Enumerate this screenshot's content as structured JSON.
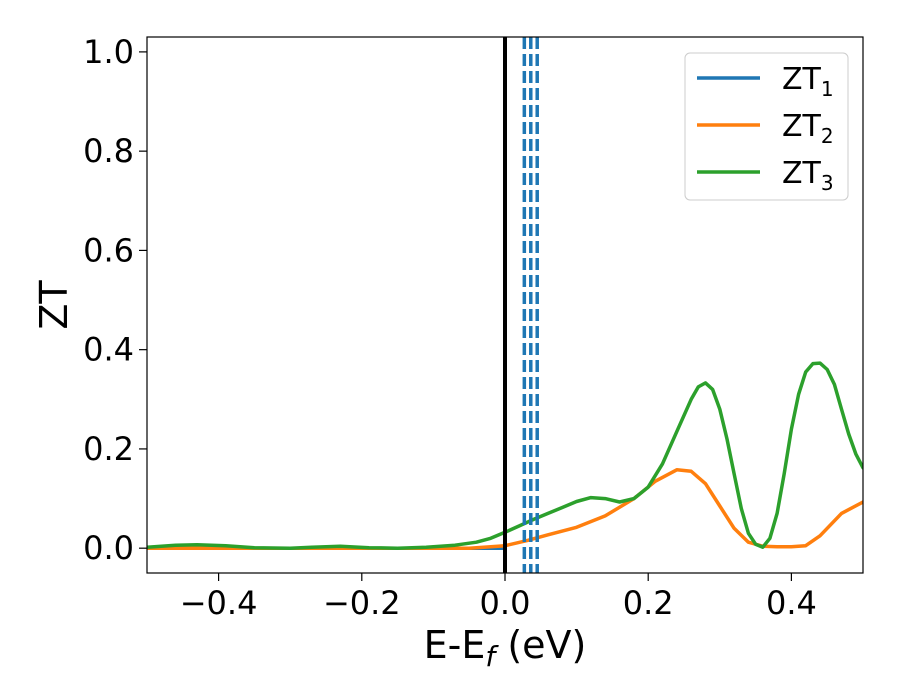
{
  "chart_data": {
    "type": "line",
    "title": "",
    "xlabel": "E-E",
    "xlabel_sub": "f",
    "xlabel_unit": " (eV)",
    "ylabel": "ZT",
    "xlim": [
      -0.5,
      0.5
    ],
    "ylim": [
      -0.05,
      1.03
    ],
    "xticks": [
      -0.4,
      -0.2,
      0.0,
      0.2,
      0.4
    ],
    "xtick_labels": [
      "−0.4",
      "−0.2",
      "0.0",
      "0.2",
      "0.4"
    ],
    "yticks": [
      0.0,
      0.2,
      0.4,
      0.6,
      0.8,
      1.0
    ],
    "ytick_labels": [
      "0.0",
      "0.2",
      "0.4",
      "0.6",
      "0.8",
      "1.0"
    ],
    "grid": false,
    "legend_position": "top-right",
    "series": [
      {
        "name": "ZT",
        "name_sub": "1",
        "color": "#1f77b4",
        "x": [
          -0.5,
          -0.3,
          -0.1,
          0.0
        ],
        "y": [
          0.0,
          0.0,
          0.0,
          0.0
        ]
      },
      {
        "name": "ZT",
        "name_sub": "2",
        "color": "#ff7f0e",
        "x": [
          -0.5,
          -0.45,
          -0.4,
          -0.35,
          -0.3,
          -0.25,
          -0.2,
          -0.15,
          -0.1,
          -0.05,
          0.0,
          0.03,
          0.06,
          0.1,
          0.14,
          0.18,
          0.21,
          0.24,
          0.26,
          0.28,
          0.3,
          0.32,
          0.34,
          0.36,
          0.38,
          0.4,
          0.42,
          0.44,
          0.47,
          0.5
        ],
        "y": [
          0.0,
          0.0,
          0.0,
          0.0,
          0.0,
          0.0,
          0.0,
          0.0,
          0.0,
          0.0,
          0.005,
          0.015,
          0.027,
          0.042,
          0.065,
          0.1,
          0.135,
          0.158,
          0.155,
          0.13,
          0.085,
          0.04,
          0.012,
          0.004,
          0.003,
          0.003,
          0.005,
          0.025,
          0.07,
          0.093
        ]
      },
      {
        "name": "ZT",
        "name_sub": "3",
        "color": "#2ca02c",
        "x": [
          -0.5,
          -0.46,
          -0.43,
          -0.39,
          -0.35,
          -0.3,
          -0.27,
          -0.23,
          -0.19,
          -0.15,
          -0.11,
          -0.07,
          -0.04,
          -0.02,
          0.0,
          0.02,
          0.04,
          0.06,
          0.08,
          0.1,
          0.12,
          0.14,
          0.16,
          0.18,
          0.2,
          0.22,
          0.24,
          0.26,
          0.27,
          0.28,
          0.29,
          0.3,
          0.31,
          0.32,
          0.33,
          0.34,
          0.35,
          0.36,
          0.37,
          0.38,
          0.39,
          0.4,
          0.41,
          0.42,
          0.43,
          0.44,
          0.45,
          0.46,
          0.47,
          0.48,
          0.49,
          0.5
        ],
        "y": [
          0.002,
          0.006,
          0.007,
          0.005,
          0.001,
          0.0,
          0.002,
          0.004,
          0.001,
          0.0,
          0.002,
          0.006,
          0.012,
          0.02,
          0.032,
          0.045,
          0.058,
          0.07,
          0.082,
          0.094,
          0.102,
          0.1,
          0.093,
          0.1,
          0.123,
          0.17,
          0.235,
          0.3,
          0.325,
          0.333,
          0.32,
          0.28,
          0.22,
          0.15,
          0.08,
          0.03,
          0.008,
          0.002,
          0.02,
          0.07,
          0.15,
          0.24,
          0.31,
          0.355,
          0.372,
          0.373,
          0.36,
          0.33,
          0.28,
          0.23,
          0.19,
          0.162
        ]
      }
    ],
    "vlines": [
      {
        "x": 0.0,
        "color": "#000000",
        "style": "solid"
      },
      {
        "x": 0.027,
        "color": "#1f77b4",
        "style": "dashed"
      },
      {
        "x": 0.036,
        "color": "#1f77b4",
        "style": "dashed"
      },
      {
        "x": 0.045,
        "color": "#1f77b4",
        "style": "dashed"
      }
    ]
  }
}
